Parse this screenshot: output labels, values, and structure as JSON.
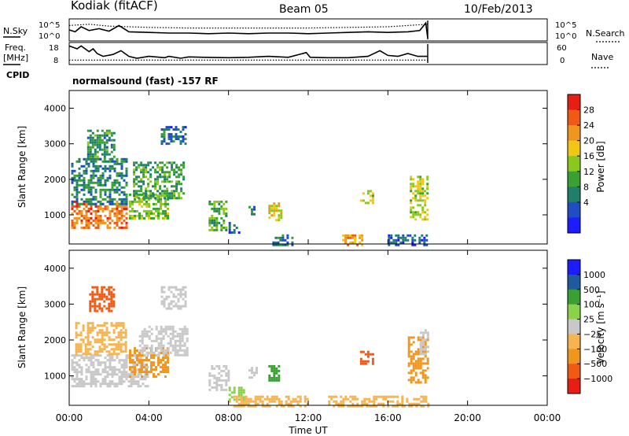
{
  "header": {
    "station": "Kodiak (fitACF)",
    "beam": "Beam 05",
    "date": "10/Feb/2013",
    "mode": "normalsound (fast) -157 RF"
  },
  "left_labels": {
    "nsky": "N.Sky",
    "freq_line1": "Freq.",
    "freq_line2": "[MHz]",
    "cpid": "CPID"
  },
  "right_labels": {
    "nsearch": "N.Search",
    "nave": "Nave"
  },
  "colors": {
    "power": [
      "#1c1cff",
      "#1f4ec4",
      "#1f7f6a",
      "#3aa032",
      "#8cc81c",
      "#f0c814",
      "#f0961e",
      "#f05a14",
      "#e61e14"
    ],
    "velocity": [
      "#e61e14",
      "#f05a14",
      "#f0961e",
      "#f5b450",
      "#c8c8c8",
      "#8ad24a",
      "#3aa032",
      "#1f5a9e",
      "#1c1cff"
    ]
  },
  "chart_data": [
    {
      "type": "line",
      "panel": "noise",
      "xlim": [
        0,
        24
      ],
      "left_ticks": [
        "10^5",
        "10^0"
      ],
      "right_ticks": [
        "10^5",
        "10^0"
      ],
      "series": [
        {
          "name": "N.Sky",
          "style": "solid",
          "x": [
            0,
            0.3,
            0.6,
            1,
            1.5,
            2,
            2.5,
            3,
            4,
            5,
            6,
            7,
            8,
            9,
            10,
            11,
            12,
            13,
            14,
            15,
            16,
            17,
            17.6,
            17.9,
            18
          ],
          "y": [
            1.5,
            1.2,
            2.0,
            1.4,
            1.7,
            1.3,
            2.2,
            1.2,
            1.1,
            1.0,
            1.0,
            0.9,
            1.0,
            0.9,
            1.0,
            1.0,
            0.9,
            1.0,
            1.1,
            1.2,
            1.1,
            1.2,
            1.4,
            2.6,
            0.2
          ]
        },
        {
          "name": "N.Search",
          "style": "dotted",
          "x": [
            0,
            1,
            2,
            3,
            4,
            6,
            8,
            10,
            12,
            14,
            16,
            17,
            18
          ],
          "y": [
            2.2,
            2.4,
            2.1,
            2.0,
            1.9,
            1.8,
            1.8,
            1.8,
            1.8,
            1.9,
            2.0,
            2.2,
            2.4
          ]
        }
      ]
    },
    {
      "type": "line",
      "panel": "frequency",
      "left_ticks": [
        "18",
        "8"
      ],
      "right_ticks": [
        "60",
        "0"
      ],
      "series": [
        {
          "name": "Freq.",
          "style": "solid",
          "x": [
            0,
            0.4,
            0.6,
            1.0,
            1.2,
            1.4,
            1.7,
            2.2,
            2.6,
            3.0,
            3.4,
            4.0,
            4.8,
            5.0,
            5.6,
            6.0,
            6.8,
            8.0,
            9.0,
            10.0,
            11.0,
            11.9,
            12.1,
            13.0,
            14.0,
            15.0,
            15.6,
            16.0,
            16.5,
            17.0,
            17.5,
            18.0
          ],
          "y": [
            17,
            15.5,
            17,
            14,
            15.5,
            13,
            11.5,
            12.5,
            14.5,
            11.5,
            10.5,
            11.5,
            10.8,
            11.5,
            10.5,
            11.2,
            11,
            10.8,
            11,
            11.5,
            11,
            13.5,
            11,
            10.8,
            10.8,
            11.5,
            14.5,
            12,
            11.5,
            13,
            11.5,
            11.5
          ]
        },
        {
          "name": "Nave",
          "style": "dotted",
          "x": [
            0,
            18
          ],
          "y": [
            9.5,
            9.5
          ]
        }
      ]
    },
    {
      "type": "heatmap",
      "panel": "power",
      "xlabel": "",
      "ylabel": "Slant Range [km]",
      "xlim": [
        0,
        24
      ],
      "ylim": [
        180,
        4500
      ],
      "y_ticks": [
        1000,
        2000,
        3000,
        4000
      ],
      "colorbar": {
        "label": "Power [dB]",
        "ticks": [
          4,
          8,
          12,
          16,
          20,
          24,
          28
        ],
        "range": [
          0,
          30
        ]
      },
      "regions": [
        {
          "t0": 0.1,
          "t1": 2.9,
          "r0": 650,
          "r1": 1400,
          "val": 24
        },
        {
          "t0": 0.1,
          "t1": 2.9,
          "r0": 1300,
          "r1": 2600,
          "val": 9
        },
        {
          "t0": 0.9,
          "t1": 2.3,
          "r0": 2600,
          "r1": 3400,
          "val": 10
        },
        {
          "t0": 3.0,
          "t1": 5.0,
          "r0": 900,
          "r1": 1600,
          "val": 14
        },
        {
          "t0": 3.2,
          "t1": 5.8,
          "r0": 1500,
          "r1": 2500,
          "val": 11
        },
        {
          "t0": 4.6,
          "t1": 5.9,
          "r0": 3000,
          "r1": 3500,
          "val": 7
        },
        {
          "t0": 7.0,
          "t1": 7.9,
          "r0": 600,
          "r1": 1400,
          "val": 12
        },
        {
          "t0": 8.0,
          "t1": 8.5,
          "r0": 500,
          "r1": 800,
          "val": 6
        },
        {
          "t0": 9.0,
          "t1": 9.3,
          "r0": 950,
          "r1": 1250,
          "val": 8
        },
        {
          "t0": 10.0,
          "t1": 10.6,
          "r0": 850,
          "r1": 1350,
          "val": 18
        },
        {
          "t0": 10.2,
          "t1": 11.2,
          "r0": 180,
          "r1": 450,
          "val": 8
        },
        {
          "t0": 13.7,
          "t1": 14.7,
          "r0": 180,
          "r1": 450,
          "val": 22
        },
        {
          "t0": 14.6,
          "t1": 15.3,
          "r0": 1350,
          "r1": 1700,
          "val": 16
        },
        {
          "t0": 17.1,
          "t1": 18.0,
          "r0": 900,
          "r1": 2100,
          "val": 16
        },
        {
          "t0": 16.0,
          "t1": 18.0,
          "r0": 180,
          "r1": 450,
          "val": 6
        }
      ]
    },
    {
      "type": "heatmap",
      "panel": "velocity",
      "xlabel": "Time UT",
      "ylabel": "Slant Range [km]",
      "xlim": [
        0,
        24
      ],
      "ylim": [
        180,
        4500
      ],
      "x_ticks": [
        "00:00",
        "04:00",
        "08:00",
        "12:00",
        "16:00",
        "20:00",
        "00:00"
      ],
      "y_ticks": [
        1000,
        2000,
        3000,
        4000
      ],
      "colorbar": {
        "label": "Velocity [m s⁻¹]",
        "ticks": [
          "1000",
          "500",
          "100",
          "25",
          "−25",
          "−100",
          "−500",
          "−1000"
        ]
      },
      "regions": [
        {
          "t0": 0.1,
          "t1": 4.0,
          "r0": 700,
          "r1": 1600,
          "val": "#c8c8c8"
        },
        {
          "t0": 0.3,
          "t1": 2.8,
          "r0": 1600,
          "r1": 2500,
          "val": "#f5b450"
        },
        {
          "t0": 3.0,
          "t1": 5.0,
          "r0": 1000,
          "r1": 1800,
          "val": "#f0961e"
        },
        {
          "t0": 3.5,
          "t1": 5.9,
          "r0": 1600,
          "r1": 2400,
          "val": "#c8c8c8"
        },
        {
          "t0": 1.0,
          "t1": 2.3,
          "r0": 2800,
          "r1": 3500,
          "val": "#f05a14"
        },
        {
          "t0": 4.6,
          "t1": 5.9,
          "r0": 2900,
          "r1": 3500,
          "val": "#c8c8c8"
        },
        {
          "t0": 7.0,
          "t1": 8.0,
          "r0": 600,
          "r1": 1300,
          "val": "#c8c8c8"
        },
        {
          "t0": 8.0,
          "t1": 8.8,
          "r0": 350,
          "r1": 700,
          "val": "#8ad24a"
        },
        {
          "t0": 9.0,
          "t1": 9.4,
          "r0": 950,
          "r1": 1250,
          "val": "#c8c8c8"
        },
        {
          "t0": 10.0,
          "t1": 10.5,
          "r0": 900,
          "r1": 1300,
          "val": "#3aa032"
        },
        {
          "t0": 8.0,
          "t1": 12.0,
          "r0": 180,
          "r1": 450,
          "val": "#f5b450"
        },
        {
          "t0": 14.6,
          "t1": 15.3,
          "r0": 1350,
          "r1": 1700,
          "val": "#f05a14"
        },
        {
          "t0": 17.0,
          "t1": 18.0,
          "r0": 800,
          "r1": 2100,
          "val": "#f0961e"
        },
        {
          "t0": 17.6,
          "t1": 18.0,
          "r0": 1600,
          "r1": 2300,
          "val": "#c8c8c8"
        },
        {
          "t0": 13.0,
          "t1": 18.0,
          "r0": 180,
          "r1": 450,
          "val": "#f5b450"
        }
      ]
    }
  ]
}
